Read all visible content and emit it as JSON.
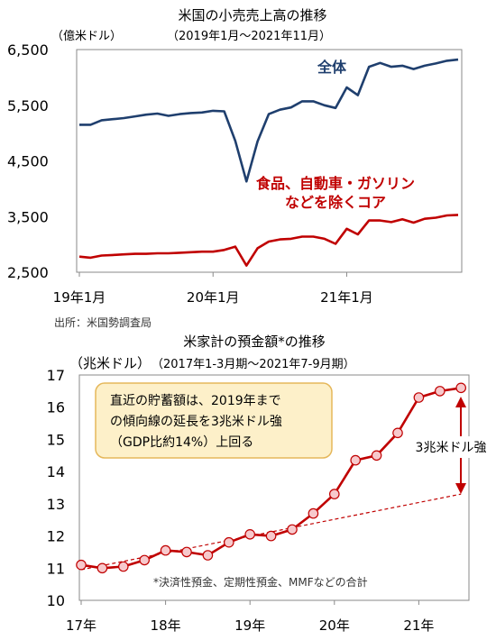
{
  "chart_data": [
    {
      "type": "line",
      "title": "米国の小売売上高の推移",
      "subtitle": "（2019年1月～2021年11月）",
      "yunit": "（億米ドル）",
      "source": "出所：米国勢調査局",
      "ylim": [
        2500,
        6500
      ],
      "yticks": [
        "6,500",
        "5,500",
        "4,500",
        "3,500",
        "2,500"
      ],
      "ytick_values": [
        6500,
        5500,
        4500,
        3500,
        2500
      ],
      "xticks": [
        "19年1月",
        "20年1月",
        "21年1月"
      ],
      "xtick_index": [
        0,
        12,
        24
      ],
      "grid": false,
      "series": [
        {
          "name": "全体",
          "color": "#1f3f6e",
          "values": [
            5150,
            5150,
            5230,
            5250,
            5270,
            5300,
            5330,
            5350,
            5310,
            5340,
            5360,
            5370,
            5400,
            5390,
            4860,
            4130,
            4850,
            5340,
            5420,
            5460,
            5570,
            5570,
            5500,
            5450,
            5820,
            5680,
            6190,
            6260,
            6190,
            6210,
            6150,
            6210,
            6250,
            6300,
            6320
          ]
        },
        {
          "name": "食品、自動車・ガソリンなどを除くコア",
          "label_line1": "食品、自動車・ガソリン",
          "label_line2": "などを除くコア",
          "color": "#c00000",
          "values": [
            2780,
            2760,
            2800,
            2810,
            2820,
            2830,
            2830,
            2840,
            2840,
            2850,
            2860,
            2870,
            2870,
            2900,
            2960,
            2620,
            2930,
            3050,
            3090,
            3100,
            3140,
            3140,
            3100,
            3010,
            3280,
            3180,
            3430,
            3430,
            3400,
            3450,
            3390,
            3460,
            3480,
            3520,
            3530
          ]
        }
      ]
    },
    {
      "type": "line",
      "title": "米家計の預金額*の推移",
      "subtitle": "（2017年1-3月期～2021年7-9月期）",
      "yunit": "（兆米ドル）",
      "ylim": [
        10,
        17
      ],
      "yticks": [
        "17",
        "16",
        "15",
        "14",
        "13",
        "12",
        "11",
        "10"
      ],
      "ytick_values": [
        17,
        16,
        15,
        14,
        13,
        12,
        11,
        10
      ],
      "xticks": [
        "17年",
        "18年",
        "19年",
        "20年",
        "21年"
      ],
      "xtick_index": [
        0,
        4,
        8,
        12,
        16
      ],
      "grid": false,
      "series": [
        {
          "name": "預金額",
          "color": "#c00000",
          "x": [
            0,
            1,
            2,
            3,
            4,
            5,
            6,
            7,
            8,
            9,
            10,
            11,
            12,
            13,
            14,
            15,
            16,
            17,
            18
          ],
          "values": [
            11.1,
            11.0,
            11.05,
            11.25,
            11.55,
            11.5,
            11.4,
            11.8,
            12.05,
            12.0,
            12.2,
            12.7,
            13.3,
            14.35,
            14.5,
            15.2,
            16.3,
            16.5,
            16.6
          ]
        }
      ],
      "trend": {
        "from": [
          0,
          10.95
        ],
        "to": [
          18,
          13.3
        ],
        "style": "dashed"
      },
      "annotation": {
        "lines": [
          "直近の貯蓄額は、2019年まで",
          "の傾向線の延長を3兆米ドル強",
          "（GDP比約14%）上回る"
        ]
      },
      "gap_label": "3兆米ドル強",
      "footnote": "*決済性預金、定期性預金、MMFなどの合計"
    }
  ]
}
